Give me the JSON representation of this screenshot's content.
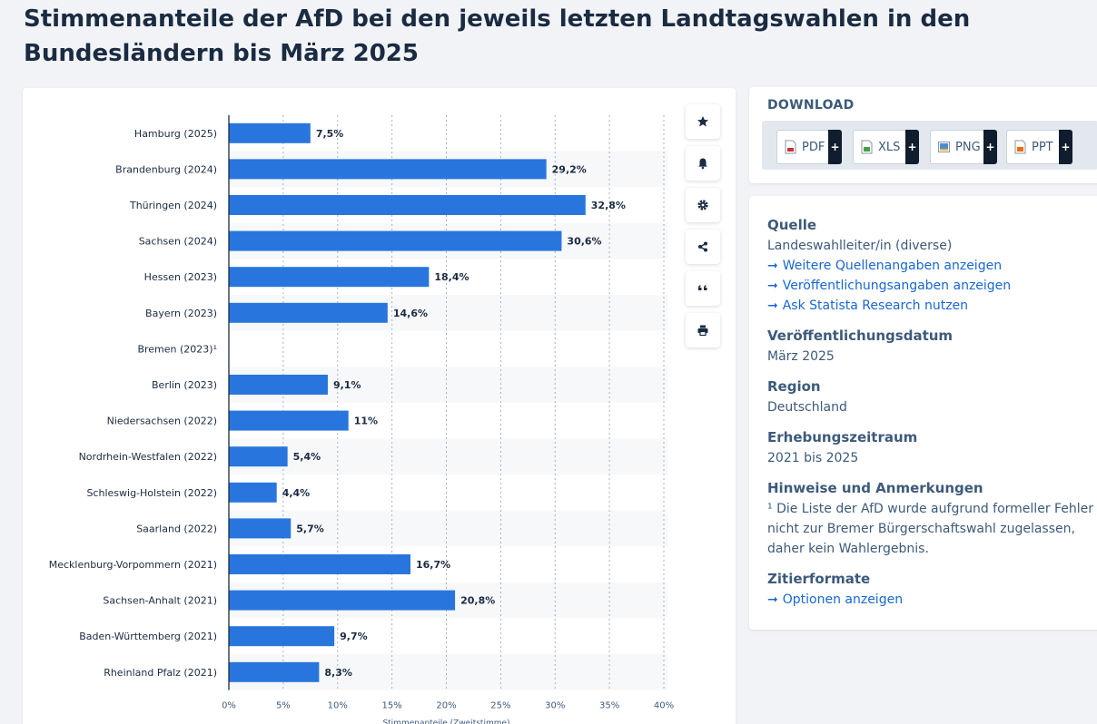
{
  "page": {
    "title": "Stimmenanteile der AfD bei den jeweils letzten Landtagswahlen in den Bundesländern bis März 2025"
  },
  "chart_data": {
    "type": "bar",
    "orientation": "horizontal",
    "categories": [
      "Hamburg (2025)",
      "Brandenburg (2024)",
      "Thüringen (2024)",
      "Sachsen (2024)",
      "Hessen (2023)",
      "Bayern (2023)",
      "Bremen (2023)¹",
      "Berlin (2023)",
      "Niedersachsen (2022)",
      "Nordrhein-Westfalen (2022)",
      "Schleswig-Holstein (2022)",
      "Saarland (2022)",
      "Mecklenburg-Vorpommern (2021)",
      "Sachsen-Anhalt (2021)",
      "Baden-Württemberg (2021)",
      "Rheinland Pfalz (2021)"
    ],
    "values": [
      7.5,
      29.2,
      32.8,
      30.6,
      18.4,
      14.6,
      null,
      9.1,
      11,
      5.4,
      4.4,
      5.7,
      16.7,
      20.8,
      9.7,
      8.3
    ],
    "value_labels": [
      "7,5%",
      "29,2%",
      "32,8%",
      "30,6%",
      "18,4%",
      "14,6%",
      "",
      "9,1%",
      "11%",
      "5,4%",
      "4,4%",
      "5,7%",
      "16,7%",
      "20,8%",
      "9,7%",
      "8,3%"
    ],
    "xlim": [
      0,
      40
    ],
    "ticks": [
      0,
      5,
      10,
      15,
      20,
      25,
      30,
      35,
      40
    ],
    "tick_labels": [
      "0%",
      "5%",
      "10%",
      "15%",
      "20%",
      "25%",
      "30%",
      "35%",
      "40%"
    ],
    "xlabel": "Stimmenanteile (Zweitstimme)",
    "bar_color": "#2876dd"
  },
  "download": {
    "title": "DOWNLOAD",
    "buttons": [
      {
        "label": "PDF",
        "plus": "+"
      },
      {
        "label": "XLS",
        "plus": "+"
      },
      {
        "label": "PNG",
        "plus": "+"
      },
      {
        "label": "PPT",
        "plus": "+"
      }
    ]
  },
  "info": {
    "source_heading": "Quelle",
    "source_text": "Landeswahlleiter/in (diverse)",
    "arrow": "➞",
    "source_link_1": "Weitere Quellenangaben anzeigen",
    "source_link_2": "Veröffentlichungsangaben anzeigen",
    "source_link_3": "Ask Statista Research nutzen",
    "date_heading": "Veröffentlichungsdatum",
    "date_text": "März 2025",
    "region_heading": "Region",
    "region_text": "Deutschland",
    "period_heading": "Erhebungszeitraum",
    "period_text": "2021 bis 2025",
    "notes_heading": "Hinweise und Anmerkungen",
    "notes_text": "¹ Die Liste der AfD wurde aufgrund formeller Fehler nicht zur Bremer Bürgerschaftswahl zugelassen, daher kein Wahlergebnis.",
    "cite_heading": "Zitierformate",
    "cite_link": "Optionen anzeigen"
  }
}
